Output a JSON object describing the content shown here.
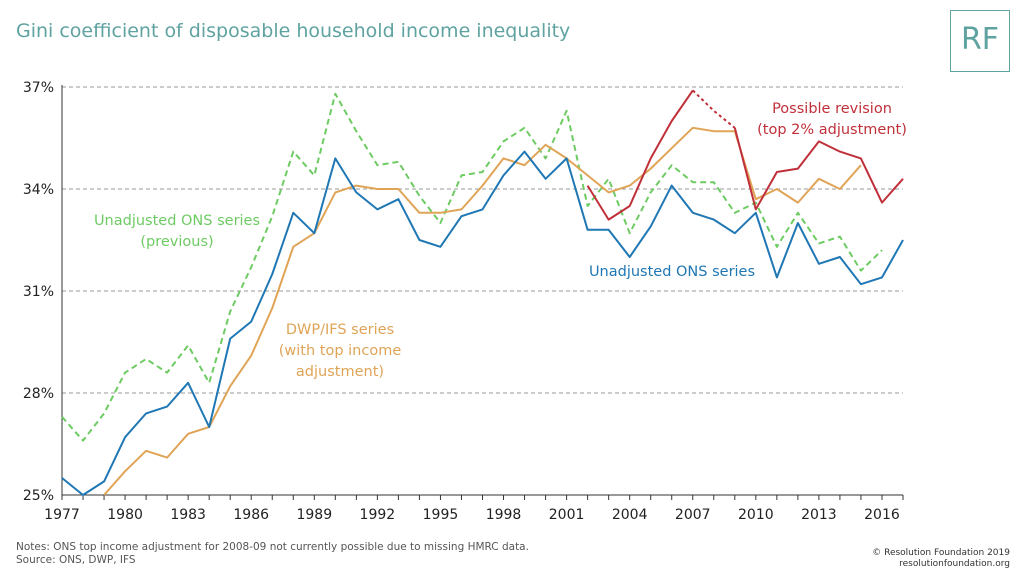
{
  "title": "Gini coefficient of disposable household income inequality",
  "logo": "RF",
  "notes": {
    "line1": "Notes: ONS top income adjustment for 2008-09 not currently possible due to missing HMRC data.",
    "line2": "Source: ONS, DWP, IFS"
  },
  "credit": {
    "line1": "© Resolution Foundation 2019",
    "line2": "resolutionfoundation.org"
  },
  "colors": {
    "ons": "#1f77b4",
    "ons_prev": "#6ecb63",
    "dwp": "#e0a457",
    "revision": "#c0303a"
  },
  "chart_data": {
    "type": "line",
    "ylim": [
      25,
      37
    ],
    "xlim": [
      1977,
      2017
    ],
    "yticks": [
      25,
      28,
      31,
      34,
      37
    ],
    "ytick_labels": [
      "25%",
      "28%",
      "31%",
      "34%",
      "37%"
    ],
    "xticks": [
      "1977",
      "1980",
      "1983",
      "1986",
      "1989",
      "1992",
      "1995",
      "1998",
      "2001",
      "2004",
      "2007",
      "2010",
      "2013",
      "2016"
    ],
    "annotations": {
      "ons_prev": [
        "Unadjusted ONS series",
        "(previous)"
      ],
      "dwp": [
        "DWP/IFS series",
        "(with top income",
        "adjustment)"
      ],
      "ons": [
        "Unadjusted ONS series"
      ],
      "revision": [
        "Possible revision",
        "(top 2% adjustment)"
      ]
    },
    "series": [
      {
        "key": "ons_prev",
        "style": "dashed",
        "x": [
          1977,
          1978,
          1979,
          1980,
          1981,
          1982,
          1983,
          1984,
          1985,
          1986,
          1987,
          1988,
          1989,
          1990,
          1991,
          1992,
          1993,
          1994,
          1995,
          1996,
          1997,
          1998,
          1999,
          2000,
          2001,
          2002,
          2003,
          2004,
          2005,
          2006,
          2007,
          2008,
          2009,
          2010,
          2011,
          2012,
          2013,
          2014,
          2015,
          2016
        ],
        "y": [
          27.3,
          26.6,
          27.4,
          28.6,
          29.0,
          28.6,
          29.4,
          28.3,
          30.4,
          31.7,
          33.2,
          35.1,
          34.4,
          36.8,
          35.7,
          34.7,
          34.8,
          33.8,
          33.0,
          34.4,
          34.5,
          35.4,
          35.8,
          34.9,
          36.3,
          33.5,
          34.3,
          32.7,
          33.9,
          34.7,
          34.2,
          34.2,
          33.3,
          33.6,
          32.3,
          33.3,
          32.4,
          32.6,
          31.6,
          32.2
        ]
      },
      {
        "key": "dwp",
        "style": "solid",
        "x": [
          1979,
          1980,
          1981,
          1982,
          1983,
          1984,
          1985,
          1986,
          1987,
          1988,
          1989,
          1990,
          1991,
          1992,
          1993,
          1994,
          1995,
          1996,
          1997,
          1998,
          1999,
          2000,
          2001,
          2002,
          2003,
          2004,
          2005,
          2006,
          2007,
          2008,
          2009,
          2010,
          2011,
          2012,
          2013,
          2014,
          2015
        ],
        "y": [
          25.0,
          25.7,
          26.3,
          26.1,
          26.8,
          27.0,
          28.2,
          29.1,
          30.5,
          32.3,
          32.7,
          33.9,
          34.1,
          34.0,
          34.0,
          33.3,
          33.3,
          33.4,
          34.1,
          34.9,
          34.7,
          35.3,
          34.9,
          34.4,
          33.9,
          34.1,
          34.6,
          35.2,
          35.8,
          35.7,
          35.7,
          33.7,
          34.0,
          33.6,
          34.3,
          34.0,
          34.7
        ]
      },
      {
        "key": "ons",
        "style": "solid",
        "x": [
          1977,
          1978,
          1979,
          1980,
          1981,
          1982,
          1983,
          1984,
          1985,
          1986,
          1987,
          1988,
          1989,
          1990,
          1991,
          1992,
          1993,
          1994,
          1995,
          1996,
          1997,
          1998,
          1999,
          2000,
          2001,
          2002,
          2003,
          2004,
          2005,
          2006,
          2007,
          2008,
          2009,
          2010,
          2011,
          2012,
          2013,
          2014,
          2015,
          2016,
          2017
        ],
        "y": [
          25.5,
          25.0,
          25.4,
          26.7,
          27.4,
          27.6,
          28.3,
          27.0,
          29.6,
          30.1,
          31.5,
          33.3,
          32.7,
          34.9,
          33.9,
          33.4,
          33.7,
          32.5,
          32.3,
          33.2,
          33.4,
          34.4,
          35.1,
          34.3,
          34.9,
          32.8,
          32.8,
          32.0,
          32.9,
          34.1,
          33.3,
          33.1,
          32.7,
          33.3,
          31.4,
          33.0,
          31.8,
          32.0,
          31.2,
          31.4,
          32.5
        ]
      },
      {
        "key": "revision",
        "style": "solid",
        "x": [
          2002,
          2003,
          2004,
          2005,
          2006,
          2007
        ],
        "y": [
          34.1,
          33.1,
          33.5,
          34.9,
          36.0,
          36.9
        ]
      },
      {
        "key": "revision_gap",
        "style": "dotted",
        "x": [
          2007,
          2008,
          2009
        ],
        "y": [
          36.9,
          36.3,
          35.8
        ]
      },
      {
        "key": "revision_late",
        "style": "solid",
        "x": [
          2009,
          2010,
          2011,
          2012,
          2013,
          2014,
          2015,
          2016,
          2017
        ],
        "y": [
          35.8,
          33.4,
          34.5,
          34.6,
          35.4,
          35.1,
          34.9,
          33.6,
          34.3
        ]
      }
    ]
  }
}
